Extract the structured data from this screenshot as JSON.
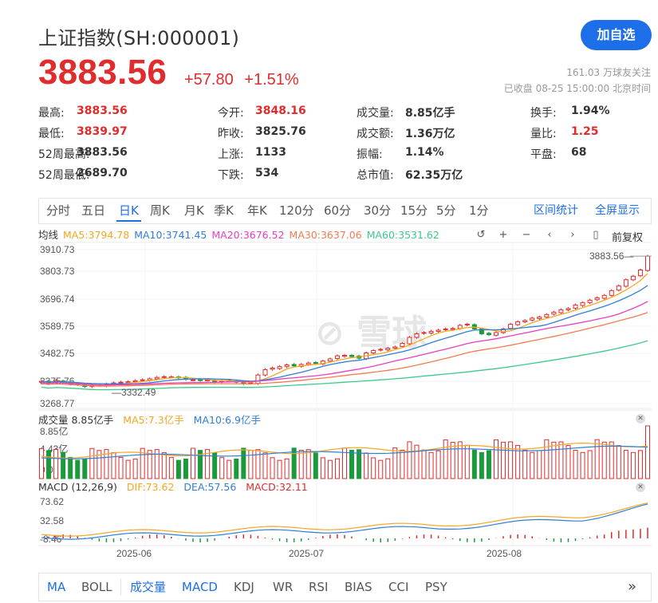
{
  "header": {
    "title": "上证指数(SH:000001)",
    "follow_label": "加自选",
    "price": "3883.56",
    "change": "+57.80",
    "change_pct": "+1.51%",
    "followers": "161.03 万球友关注",
    "status": "已收盘 08-25 15:00:00 北京时间"
  },
  "stats": [
    {
      "label": "最高:",
      "value": "3883.56",
      "red": true
    },
    {
      "label": "今开:",
      "value": "3848.16",
      "red": true
    },
    {
      "label": "成交量:",
      "value": "8.85亿手",
      "red": false
    },
    {
      "label": "换手:",
      "value": "1.94%",
      "red": false
    },
    {
      "label": "最低:",
      "value": "3839.97",
      "red": true
    },
    {
      "label": "昨收:",
      "value": "3825.76",
      "red": false
    },
    {
      "label": "成交额:",
      "value": "1.36万亿",
      "red": false
    },
    {
      "label": "量比:",
      "value": "1.25",
      "red": true
    },
    {
      "label": "52周最高:",
      "value": "3883.56",
      "red": false
    },
    {
      "label": "上涨:",
      "value": "1133",
      "red": false
    },
    {
      "label": "振幅:",
      "value": "1.14%",
      "red": false
    },
    {
      "label": "平盘:",
      "value": "68",
      "red": false
    },
    {
      "label": "52周最低:",
      "value": "2689.70",
      "red": false
    },
    {
      "label": "下跌:",
      "value": "534",
      "red": false
    },
    {
      "label": "总市值:",
      "value": "62.35万亿",
      "red": false
    }
  ],
  "period_tabs": [
    "分时",
    "五日",
    "日K",
    "周K",
    "月K",
    "季K",
    "年K",
    "120分",
    "60分",
    "30分",
    "15分",
    "5分",
    "1分"
  ],
  "active_tab": "日K",
  "right_links": {
    "interval_stats": "区间统计",
    "fullscreen": "全屏显示"
  },
  "ma_legend": {
    "label": "均线",
    "items": [
      {
        "text": "MA5:3794.78",
        "color": "#f5a623"
      },
      {
        "text": "MA10:3741.45",
        "color": "#2f7ed8"
      },
      {
        "text": "MA20:3676.52",
        "color": "#e83ec2"
      },
      {
        "text": "MA30:3637.06",
        "color": "#f57a52"
      },
      {
        "text": "MA60:3531.62",
        "color": "#3ec98a"
      }
    ]
  },
  "adjust_label": "前复权",
  "price_axis": [
    "3910.73",
    "3803.73",
    "3696.74",
    "3589.75",
    "3482.75",
    "3375.76",
    "3268.77"
  ],
  "last_price_label": "3883.56",
  "min_price_label": "3332.49",
  "watermark": "雪球",
  "volume": {
    "label": "成交量 8.85亿手",
    "ma5": "MA5:7.3亿手",
    "ma10": "MA10:6.9亿手",
    "axis": [
      "8.85亿",
      "4.43亿",
      "0.00"
    ]
  },
  "macd": {
    "label": "MACD (12,26,9)",
    "dif": "DIF:73.62",
    "dea": "DEA:57.56",
    "macd": "MACD:32.11",
    "axis": [
      "73.62",
      "32.58",
      "-8.46"
    ]
  },
  "date_axis": [
    "2025-06",
    "2025-07",
    "2025-08"
  ],
  "indicator_tabs": [
    "MA",
    "BOLL",
    "成交量",
    "MACD",
    "KDJ",
    "WR",
    "RSI",
    "BIAS",
    "CCI",
    "PSY"
  ],
  "active_indicators": [
    "MA",
    "成交量",
    "MACD"
  ],
  "colors": {
    "up": "#e02c2c",
    "down": "#1a9a3a",
    "accent": "#1c6fe8"
  },
  "chart_data": {
    "type": "candlestick",
    "closes": [
      3362,
      3355,
      3365,
      3358,
      3350,
      3348,
      3340,
      3343,
      3345,
      3350,
      3355,
      3358,
      3360,
      3364,
      3368,
      3372,
      3378,
      3381,
      3380,
      3376,
      3370,
      3368,
      3365,
      3367,
      3360,
      3362,
      3365,
      3358,
      3352,
      3355,
      3388,
      3410,
      3417,
      3423,
      3430,
      3426,
      3432,
      3438,
      3436,
      3446,
      3455,
      3468,
      3470,
      3465,
      3458,
      3480,
      3490,
      3495,
      3500,
      3505,
      3520,
      3545,
      3560,
      3565,
      3570,
      3575,
      3580,
      3582,
      3595,
      3600,
      3580,
      3560,
      3556,
      3565,
      3580,
      3600,
      3610,
      3615,
      3625,
      3630,
      3640,
      3650,
      3660,
      3665,
      3680,
      3690,
      3700,
      3710,
      3720,
      3740,
      3760,
      3785,
      3800,
      3826,
      3883.56
    ],
    "price_range": [
      3268.77,
      3910.73
    ]
  }
}
